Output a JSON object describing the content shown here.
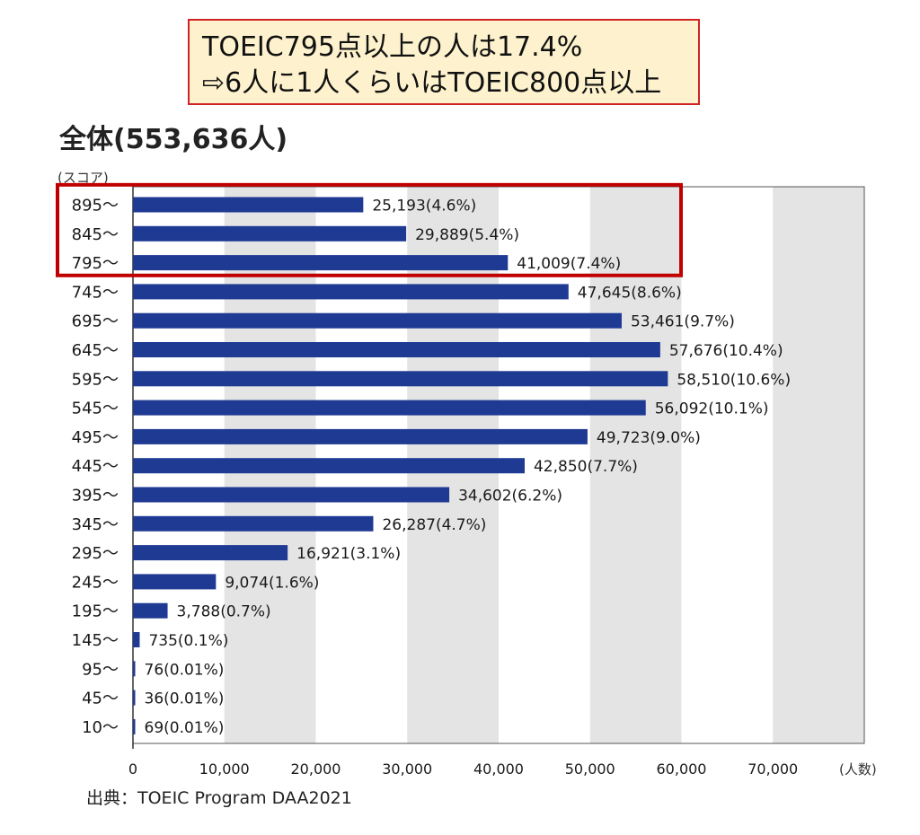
{
  "callout": {
    "line1": "TOEIC795点以上の人は17.4%",
    "line2": "⇨6人に1人くらいはTOEIC800点以上"
  },
  "source": "出典：TOEIC Program DAA2021",
  "colors": {
    "bar": "#1f3a93",
    "highlight_border": "#c00000",
    "callout_bg": "#fdf2cd",
    "callout_border": "#d02323",
    "band": "#e4e4e4"
  },
  "chart_data": {
    "type": "bar",
    "orientation": "horizontal",
    "title": "全体(553,636人)",
    "ylabel": "(スコア)",
    "xlabel": "(人数)",
    "xlim": [
      0,
      80000
    ],
    "xticks": [
      "0",
      "10,000",
      "20,000",
      "30,000",
      "40,000",
      "50,000",
      "60,000",
      "70,000"
    ],
    "grid": "alternating vertical bands",
    "categories": [
      "895〜",
      "845〜",
      "795〜",
      "745〜",
      "695〜",
      "645〜",
      "595〜",
      "545〜",
      "495〜",
      "445〜",
      "395〜",
      "345〜",
      "295〜",
      "245〜",
      "195〜",
      "145〜",
      "95〜",
      "45〜",
      "10〜"
    ],
    "values": [
      25193,
      29889,
      41009,
      47645,
      53461,
      57676,
      58510,
      56092,
      49723,
      42850,
      34602,
      26287,
      16921,
      9074,
      3788,
      735,
      76,
      36,
      69
    ],
    "labels": [
      "25,193(4.6%)",
      "29,889(5.4%)",
      "41,009(7.4%)",
      "47,645(8.6%)",
      "53,461(9.7%)",
      "57,676(10.4%)",
      "58,510(10.6%)",
      "56,092(10.1%)",
      "49,723(9.0%)",
      "42,850(7.7%)",
      "34,602(6.2%)",
      "26,287(4.7%)",
      "16,921(3.1%)",
      "9,074(1.6%)",
      "3,788(0.7%)",
      "735(0.1%)",
      "76(0.01%)",
      "36(0.01%)",
      "69(0.01%)"
    ],
    "highlighted_categories": [
      "895〜",
      "845〜",
      "795〜"
    ]
  }
}
